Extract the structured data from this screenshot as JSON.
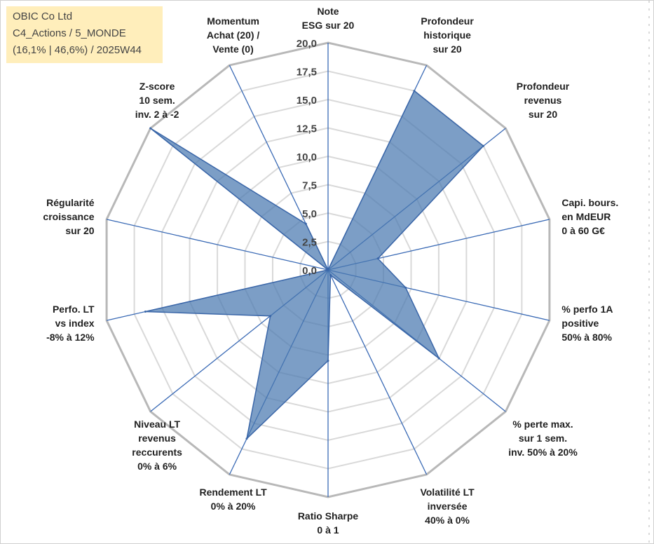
{
  "info_box": {
    "line1": "OBIC Co Ltd",
    "line2": "C4_Actions / 5_MONDE",
    "line3": "(16,1% | 46,6%) / 2025W44"
  },
  "chart_data": {
    "type": "radar",
    "title": "",
    "rmax": 20,
    "rmin": 0,
    "step": 2.5,
    "tick_labels": [
      "0,0",
      "2,5",
      "5,0",
      "7,5",
      "10,0",
      "12,5",
      "15,0",
      "17,5",
      "20,0"
    ],
    "axes": [
      [
        "Note",
        "ESG sur 20"
      ],
      [
        "Profondeur",
        "historique",
        "sur 20"
      ],
      [
        "Profondeur",
        "revenus",
        "sur 20"
      ],
      [
        "Capi. bours.",
        "en MdEUR",
        "0 à 60 G€"
      ],
      [
        "% perfo 1A",
        "positive",
        "50% à 80%"
      ],
      [
        "% perte max.",
        "sur 1 sem.",
        "inv. 50% à 20%"
      ],
      [
        "Volatilité LT",
        "inversée",
        "40% à 0%"
      ],
      [
        "Ratio Sharpe",
        "0 à 1"
      ],
      [
        "Rendement LT",
        "0% à 20%"
      ],
      [
        "Niveau LT",
        "revenus",
        "reccurents",
        "0% à 6%"
      ],
      [
        "Perfo. LT",
        "vs index",
        "-8% à 12%"
      ],
      [
        "Régularité",
        "croissance",
        "sur 20"
      ],
      [
        "Z-score",
        "10 sem.",
        "inv. 2 à -2"
      ],
      [
        "Momentum",
        "Achat (20) /",
        "Vente (0)"
      ]
    ],
    "values": [
      0,
      17.5,
      17.5,
      4.5,
      7.0,
      12.5,
      0.5,
      8.0,
      16.5,
      6.5,
      16.5,
      0,
      20,
      4.5
    ],
    "series_color": "#4a78b0",
    "grid": true
  }
}
